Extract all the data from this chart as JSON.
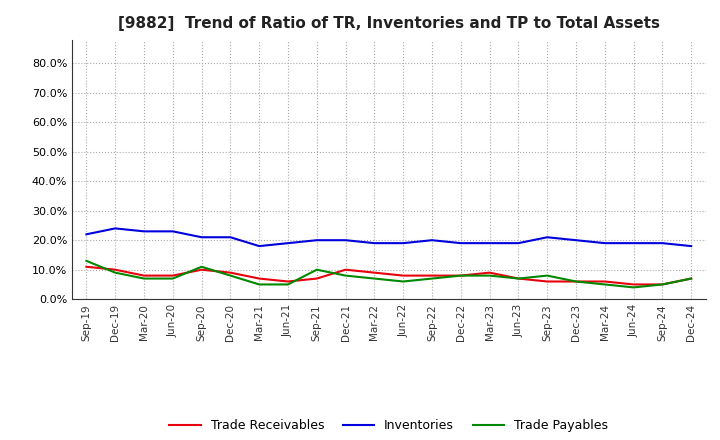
{
  "title": "[9882]  Trend of Ratio of TR, Inventories and TP to Total Assets",
  "x_labels": [
    "Sep-19",
    "Dec-19",
    "Mar-20",
    "Jun-20",
    "Sep-20",
    "Dec-20",
    "Mar-21",
    "Jun-21",
    "Sep-21",
    "Dec-21",
    "Mar-22",
    "Jun-22",
    "Sep-22",
    "Dec-22",
    "Mar-23",
    "Jun-23",
    "Sep-23",
    "Dec-23",
    "Mar-24",
    "Jun-24",
    "Sep-24",
    "Dec-24"
  ],
  "trade_receivables": [
    0.11,
    0.1,
    0.08,
    0.08,
    0.1,
    0.09,
    0.07,
    0.06,
    0.07,
    0.1,
    0.09,
    0.08,
    0.08,
    0.08,
    0.09,
    0.07,
    0.06,
    0.06,
    0.06,
    0.05,
    0.05,
    0.07
  ],
  "inventories": [
    0.22,
    0.24,
    0.23,
    0.23,
    0.21,
    0.21,
    0.18,
    0.19,
    0.2,
    0.2,
    0.19,
    0.19,
    0.2,
    0.19,
    0.19,
    0.19,
    0.21,
    0.2,
    0.19,
    0.19,
    0.19,
    0.18
  ],
  "trade_payables": [
    0.13,
    0.09,
    0.07,
    0.07,
    0.11,
    0.08,
    0.05,
    0.05,
    0.1,
    0.08,
    0.07,
    0.06,
    0.07,
    0.08,
    0.08,
    0.07,
    0.08,
    0.06,
    0.05,
    0.04,
    0.05,
    0.07
  ],
  "color_tr": "#e8000d",
  "color_inv": "#0000dd",
  "color_tp": "#008800",
  "ylim": [
    0.0,
    0.88
  ],
  "yticks": [
    0.0,
    0.1,
    0.2,
    0.3,
    0.4,
    0.5,
    0.6,
    0.7,
    0.8
  ],
  "legend_labels": [
    "Trade Receivables",
    "Inventories",
    "Trade Payables"
  ],
  "background_color": "#ffffff",
  "grid_color": "#aaaaaa"
}
